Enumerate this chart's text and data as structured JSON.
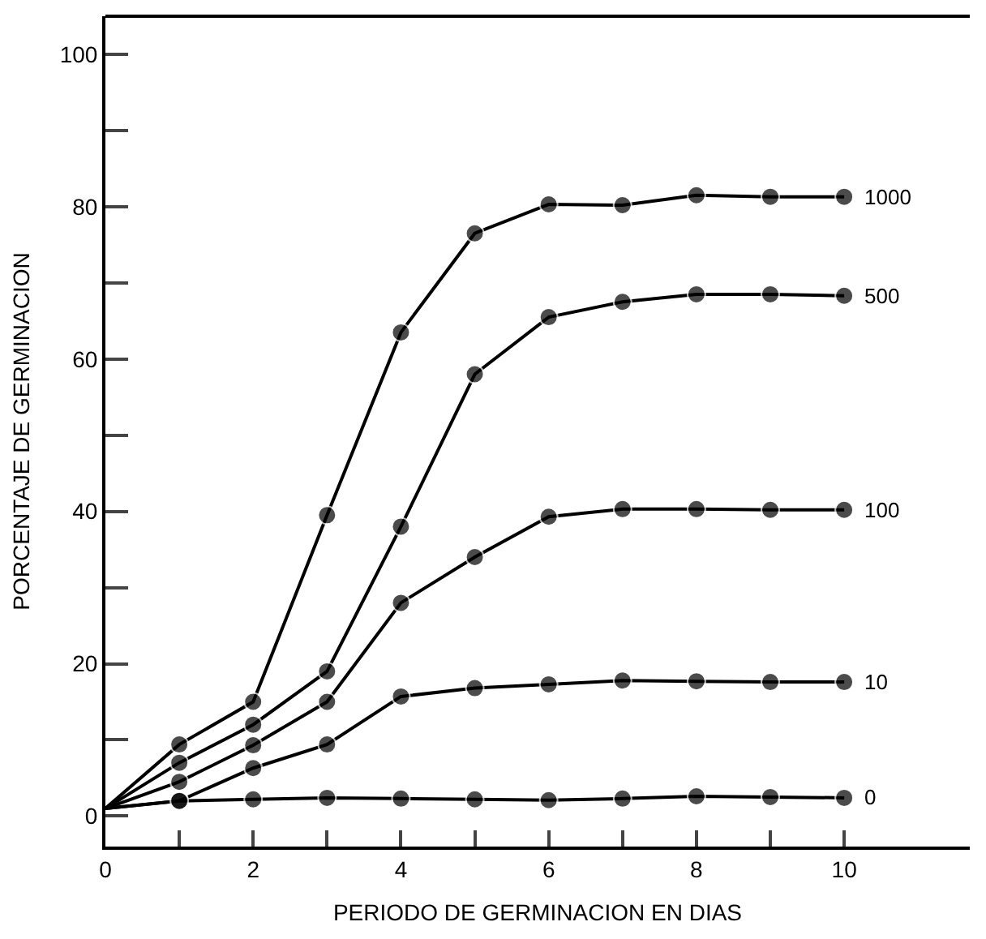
{
  "chart_data": {
    "type": "line",
    "xlabel": "PERIODO DE GERMINACION EN DIAS",
    "ylabel": "PORCENTAJE DE GERMINACION",
    "x": [
      0,
      1,
      2,
      3,
      4,
      5,
      6,
      7,
      8,
      9,
      10
    ],
    "series": [
      {
        "name": "1000",
        "color": "#000000",
        "values": [
          1,
          9.4,
          15,
          39.5,
          63.5,
          76.5,
          80.3,
          80.2,
          81.5,
          81.3,
          81.3
        ]
      },
      {
        "name": "500",
        "color": "#000000",
        "values": [
          1,
          7,
          12,
          19,
          38,
          58,
          65.5,
          67.5,
          68.5,
          68.5,
          68.3
        ]
      },
      {
        "name": "100",
        "color": "#000000",
        "values": [
          1,
          4.5,
          9.3,
          15,
          28,
          34,
          39.3,
          40.3,
          40.3,
          40.2,
          40.2
        ]
      },
      {
        "name": "10",
        "color": "#000000",
        "values": [
          1,
          2,
          6.3,
          9.4,
          15.7,
          16.8,
          17.3,
          17.8,
          17.7,
          17.6,
          17.6
        ]
      },
      {
        "name": "0",
        "color": "#000000",
        "values": [
          1,
          2,
          2.2,
          2.4,
          2.3,
          2.2,
          2.1,
          2.3,
          2.6,
          2.5,
          2.4
        ]
      }
    ],
    "xlim": [
      0,
      11.7
    ],
    "ylim": [
      -4,
      105
    ],
    "xticks": [
      0,
      {
        "value": 1,
        "label": null
      },
      2,
      {
        "value": 3,
        "label": null
      },
      4,
      {
        "value": 5,
        "label": null
      },
      6,
      {
        "value": 7,
        "label": null
      },
      8,
      {
        "value": 9,
        "label": null
      },
      10
    ],
    "yticks": [
      0,
      {
        "value": 10,
        "label": null
      },
      20,
      {
        "value": 30,
        "label": null
      },
      40,
      {
        "value": 50,
        "label": null
      },
      60,
      {
        "value": 70,
        "label": null
      },
      80,
      {
        "value": 90,
        "label": null
      },
      100
    ],
    "legend": false,
    "marker": "circle",
    "line_style": "solid"
  }
}
